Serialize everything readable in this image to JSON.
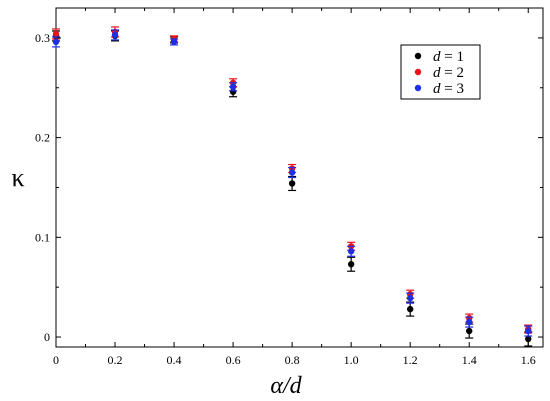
{
  "chart_data": {
    "type": "scatter",
    "xlabel": "α/d",
    "ylabel": "κ",
    "xlim": [
      0,
      1.65
    ],
    "ylim": [
      -0.01,
      0.33
    ],
    "x_ticks": [
      0,
      0.2,
      0.4,
      0.6,
      0.8,
      1.0,
      1.2,
      1.4,
      1.6
    ],
    "x_tick_labels": [
      "0",
      "0.2",
      "0.4",
      "0.6",
      "0.8",
      "1.0",
      "1.2",
      "1.4",
      "1.6"
    ],
    "y_ticks": [
      0,
      0.1,
      0.2,
      0.3
    ],
    "y_tick_labels": [
      "0",
      "0.1",
      "0.2",
      "0.3"
    ],
    "grid": false,
    "legend_position": "top-right",
    "error_bars": true,
    "series": [
      {
        "name": "d = 1",
        "legend_var": "d",
        "legend_rest": " = 1",
        "color": "#000000",
        "x": [
          0,
          0.2,
          0.4,
          0.6,
          0.8,
          1.0,
          1.2,
          1.4,
          1.6
        ],
        "y": [
          0.302,
          0.302,
          0.298,
          0.246,
          0.154,
          0.073,
          0.028,
          0.006,
          -0.002
        ],
        "err": [
          0.005,
          0.005,
          0.003,
          0.005,
          0.007,
          0.007,
          0.007,
          0.007,
          0.007
        ]
      },
      {
        "name": "d = 2",
        "legend_var": "d",
        "legend_rest": " = 2",
        "color": "#e8141c",
        "x": [
          0,
          0.2,
          0.4,
          0.6,
          0.8,
          1.0,
          1.2,
          1.4,
          1.6
        ],
        "y": [
          0.304,
          0.306,
          0.299,
          0.255,
          0.169,
          0.091,
          0.043,
          0.019,
          0.008
        ],
        "err": [
          0.005,
          0.005,
          0.003,
          0.004,
          0.004,
          0.004,
          0.004,
          0.004,
          0.004
        ]
      },
      {
        "name": "d = 3",
        "legend_var": "d",
        "legend_rest": " = 3",
        "color": "#1f2fe6",
        "x": [
          0,
          0.2,
          0.4,
          0.6,
          0.8,
          1.0,
          1.2,
          1.4,
          1.6
        ],
        "y": [
          0.296,
          0.303,
          0.296,
          0.251,
          0.165,
          0.086,
          0.039,
          0.015,
          0.006
        ],
        "err": [
          0.005,
          0.005,
          0.003,
          0.004,
          0.005,
          0.005,
          0.005,
          0.005,
          0.005
        ]
      }
    ]
  }
}
